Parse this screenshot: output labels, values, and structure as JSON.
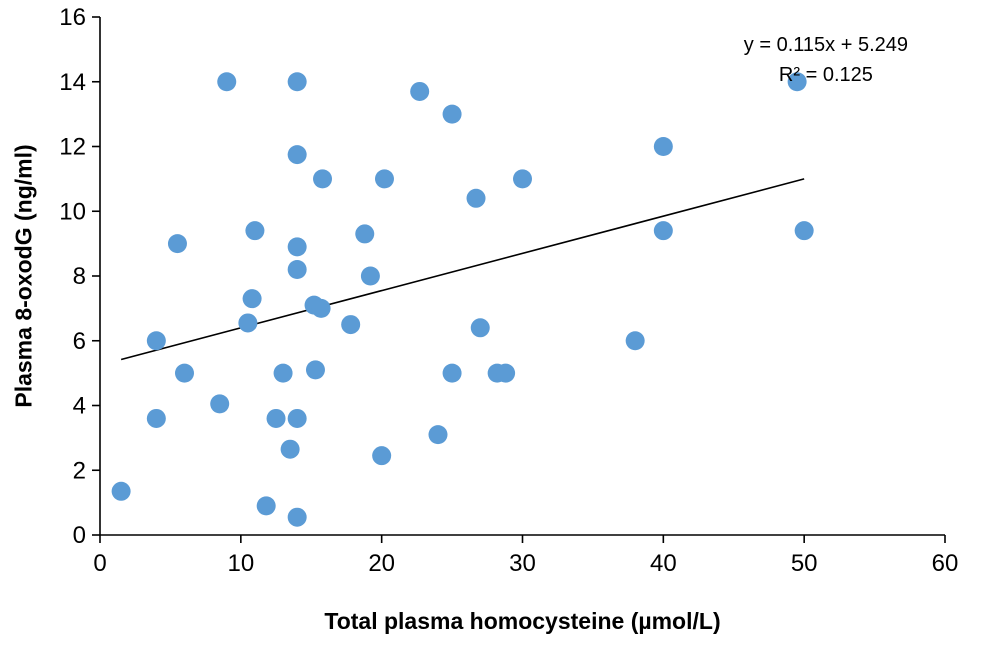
{
  "chart_data": {
    "type": "scatter",
    "title": "",
    "xlabel": "Total plasma homocysteine (µmol/L)",
    "ylabel": "Plasma 8-oxodG (ng/ml)",
    "xlim": [
      0,
      60
    ],
    "ylim": [
      0,
      16
    ],
    "x_ticks": [
      0,
      10,
      20,
      30,
      40,
      50,
      60
    ],
    "y_ticks": [
      0,
      2,
      4,
      6,
      8,
      10,
      12,
      14,
      16
    ],
    "grid": false,
    "legend": false,
    "point_color": "#5B9BD5",
    "axis_color": "#000000",
    "points": [
      [
        1.5,
        1.35
      ],
      [
        4,
        6.0
      ],
      [
        4,
        3.6
      ],
      [
        5.5,
        9.0
      ],
      [
        6,
        5.0
      ],
      [
        8.5,
        4.05
      ],
      [
        9,
        14.0
      ],
      [
        10.5,
        6.55
      ],
      [
        10.8,
        7.3
      ],
      [
        11,
        9.4
      ],
      [
        11.8,
        0.9
      ],
      [
        12.5,
        3.6
      ],
      [
        13,
        5.0
      ],
      [
        13.5,
        2.65
      ],
      [
        14,
        3.6
      ],
      [
        14,
        8.2
      ],
      [
        14,
        8.9
      ],
      [
        14,
        11.75
      ],
      [
        14,
        14.0
      ],
      [
        14,
        0.55
      ],
      [
        15.3,
        5.1
      ],
      [
        15.2,
        7.1
      ],
      [
        15.7,
        7.0
      ],
      [
        15.8,
        11.0
      ],
      [
        17.8,
        6.5
      ],
      [
        18.8,
        9.3
      ],
      [
        19.2,
        8.0
      ],
      [
        20,
        2.45
      ],
      [
        20.2,
        11.0
      ],
      [
        22.7,
        13.7
      ],
      [
        24,
        3.1
      ],
      [
        25,
        13.0
      ],
      [
        25,
        5.0
      ],
      [
        26.7,
        10.4
      ],
      [
        27,
        6.4
      ],
      [
        28.2,
        5.0
      ],
      [
        28.8,
        5.0
      ],
      [
        30,
        11.0
      ],
      [
        38,
        6.0
      ],
      [
        40,
        12.0
      ],
      [
        40,
        9.4
      ],
      [
        49.5,
        14.0
      ],
      [
        50,
        9.4
      ]
    ],
    "trendline": {
      "slope": 0.115,
      "intercept": 5.249,
      "x_start": 1.5,
      "x_end": 50,
      "color": "#000000"
    },
    "annotation": {
      "equation": "y = 0.115x + 5.249",
      "r_squared": "R² = 0.125"
    }
  }
}
